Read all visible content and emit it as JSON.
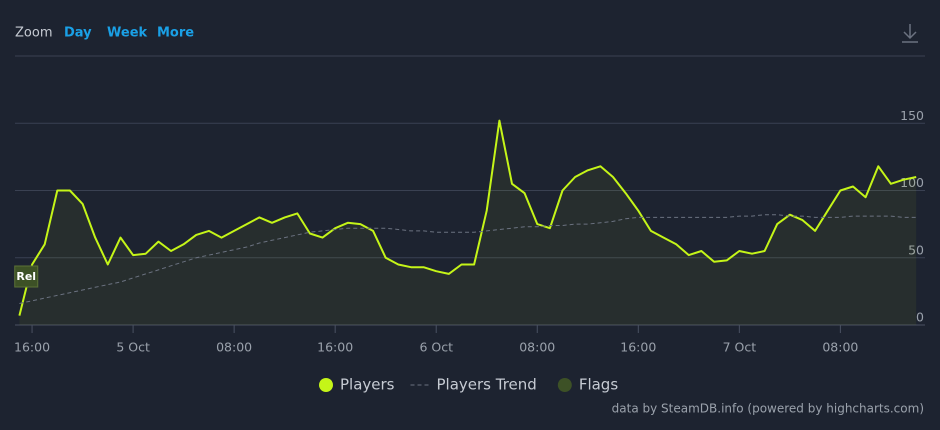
{
  "toolbar": {
    "label": "Zoom",
    "buttons": [
      "Day",
      "Week",
      "More"
    ]
  },
  "chart_data": {
    "type": "line",
    "x": [
      -1,
      0,
      1,
      2,
      3,
      4,
      5,
      6,
      7,
      8,
      9,
      10,
      11,
      12,
      13,
      14,
      15,
      16,
      17,
      18,
      19,
      20,
      21,
      22,
      23,
      24,
      25,
      26,
      27,
      28,
      29,
      30,
      31,
      32,
      33,
      34,
      35,
      36,
      37,
      38,
      39,
      40,
      41,
      42,
      43,
      44,
      45,
      46,
      47,
      48,
      49,
      50,
      51,
      52,
      53,
      54,
      55,
      56,
      57,
      58,
      59,
      60,
      61,
      62,
      63,
      64,
      65,
      66,
      67,
      68,
      69,
      70
    ],
    "series": [
      {
        "name": "Players",
        "color": "#c5f518",
        "style": "solid",
        "fill": true,
        "values": [
          7,
          45,
          60,
          100,
          100,
          90,
          65,
          45,
          65,
          52,
          53,
          62,
          55,
          60,
          67,
          70,
          65,
          70,
          75,
          80,
          76,
          80,
          83,
          68,
          65,
          72,
          76,
          75,
          70,
          50,
          45,
          43,
          43,
          40,
          38,
          45,
          45,
          85,
          152,
          105,
          98,
          75,
          72,
          100,
          110,
          115,
          118,
          110,
          98,
          85,
          70,
          65,
          60,
          52,
          55,
          47,
          48,
          55,
          53,
          55,
          75,
          82,
          78,
          70,
          85,
          100,
          103,
          95,
          118,
          105,
          108,
          110
        ]
      },
      {
        "name": "Players Trend",
        "color": "#6b7280",
        "style": "dashed",
        "fill": false,
        "values": [
          16,
          18,
          20,
          22,
          24,
          26,
          28,
          30,
          32,
          35,
          38,
          41,
          44,
          47,
          50,
          52,
          54,
          56,
          58,
          61,
          63,
          65,
          67,
          69,
          70,
          71,
          72,
          72,
          72,
          72,
          71,
          70,
          70,
          69,
          69,
          69,
          69,
          70,
          71,
          72,
          73,
          73,
          74,
          74,
          75,
          75,
          76,
          77,
          79,
          80,
          80,
          80,
          80,
          80,
          80,
          80,
          80,
          81,
          81,
          82,
          82,
          81,
          81,
          80,
          80,
          80,
          81,
          81,
          81,
          81,
          80,
          80
        ]
      }
    ],
    "flags": {
      "name": "Flags",
      "color": "#3d5126",
      "x": [
        -0.5
      ],
      "labels": [
        "Rel"
      ]
    },
    "xlim": [
      -1.35,
      70.7
    ],
    "xticks": [
      {
        "value": 0,
        "label": "16:00"
      },
      {
        "value": 8,
        "label": "5 Oct"
      },
      {
        "value": 16,
        "label": "08:00"
      },
      {
        "value": 24,
        "label": "16:00"
      },
      {
        "value": 32,
        "label": "6 Oct"
      },
      {
        "value": 40,
        "label": "08:00"
      },
      {
        "value": 48,
        "label": "16:00"
      },
      {
        "value": 56,
        "label": "7 Oct"
      },
      {
        "value": 64,
        "label": "08:00"
      }
    ],
    "ylim": [
      0,
      200
    ],
    "yticks": [
      0,
      50,
      100,
      150
    ],
    "grid": true,
    "credits": "data by SteamDB.info (powered by highcharts.com)"
  }
}
